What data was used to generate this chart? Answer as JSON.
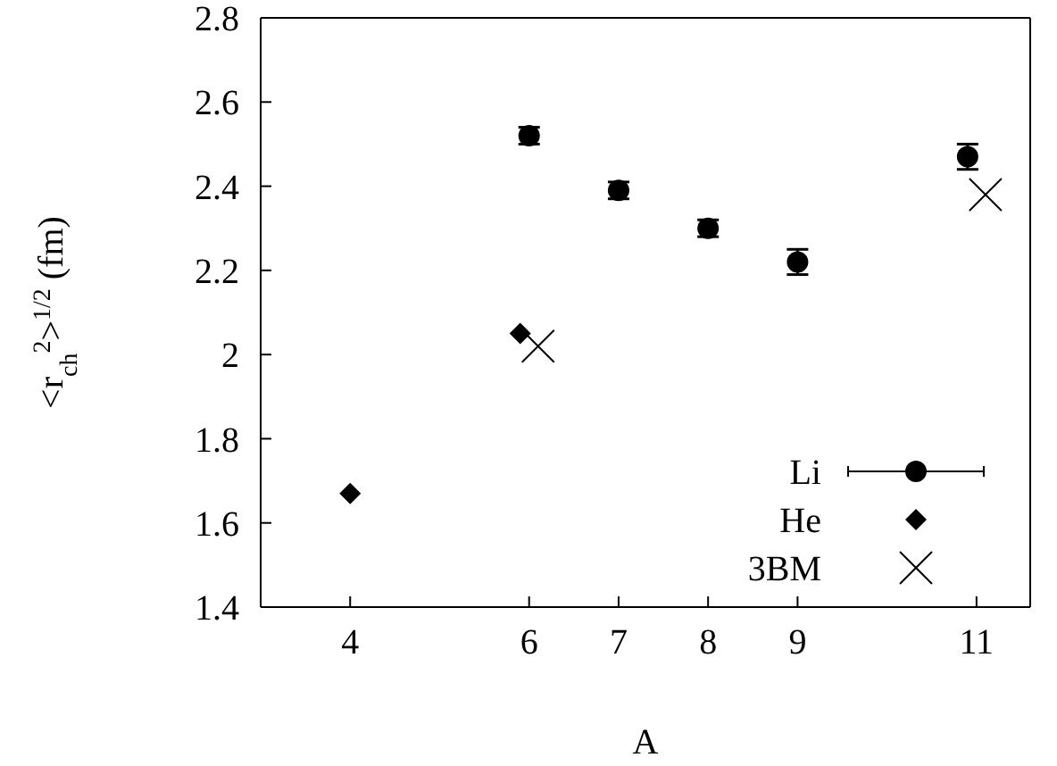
{
  "chart_data": {
    "type": "scatter",
    "xlabel": "A",
    "ylabel": "<r$_{ch}$$^{2}$>$^{1/2}$ (fm)",
    "xlim": [
      3,
      11.6
    ],
    "xticks": [
      4,
      6,
      7,
      8,
      9,
      11
    ],
    "ylim": [
      1.4,
      2.8
    ],
    "yticks": [
      1.4,
      1.6,
      1.8,
      2,
      2.2,
      2.4,
      2.6,
      2.8
    ],
    "grid": false,
    "legend": "bottom right",
    "series": [
      {
        "name": "Li",
        "color": "#000000",
        "marker": "circle",
        "x": [
          6,
          7,
          8,
          9,
          10.9
        ],
        "values": [
          2.52,
          2.39,
          2.3,
          2.22,
          2.47
        ],
        "errors": [
          0.02,
          0.02,
          0.02,
          0.03,
          0.03
        ]
      },
      {
        "name": "He",
        "color": "#000000",
        "marker": "diamond",
        "x": [
          4,
          5.9
        ],
        "values": [
          1.67,
          2.05
        ]
      },
      {
        "name": "3BM",
        "color": "#000000",
        "marker": "cross",
        "x": [
          6.1,
          11.1
        ],
        "values": [
          2.02,
          2.38
        ]
      }
    ]
  }
}
